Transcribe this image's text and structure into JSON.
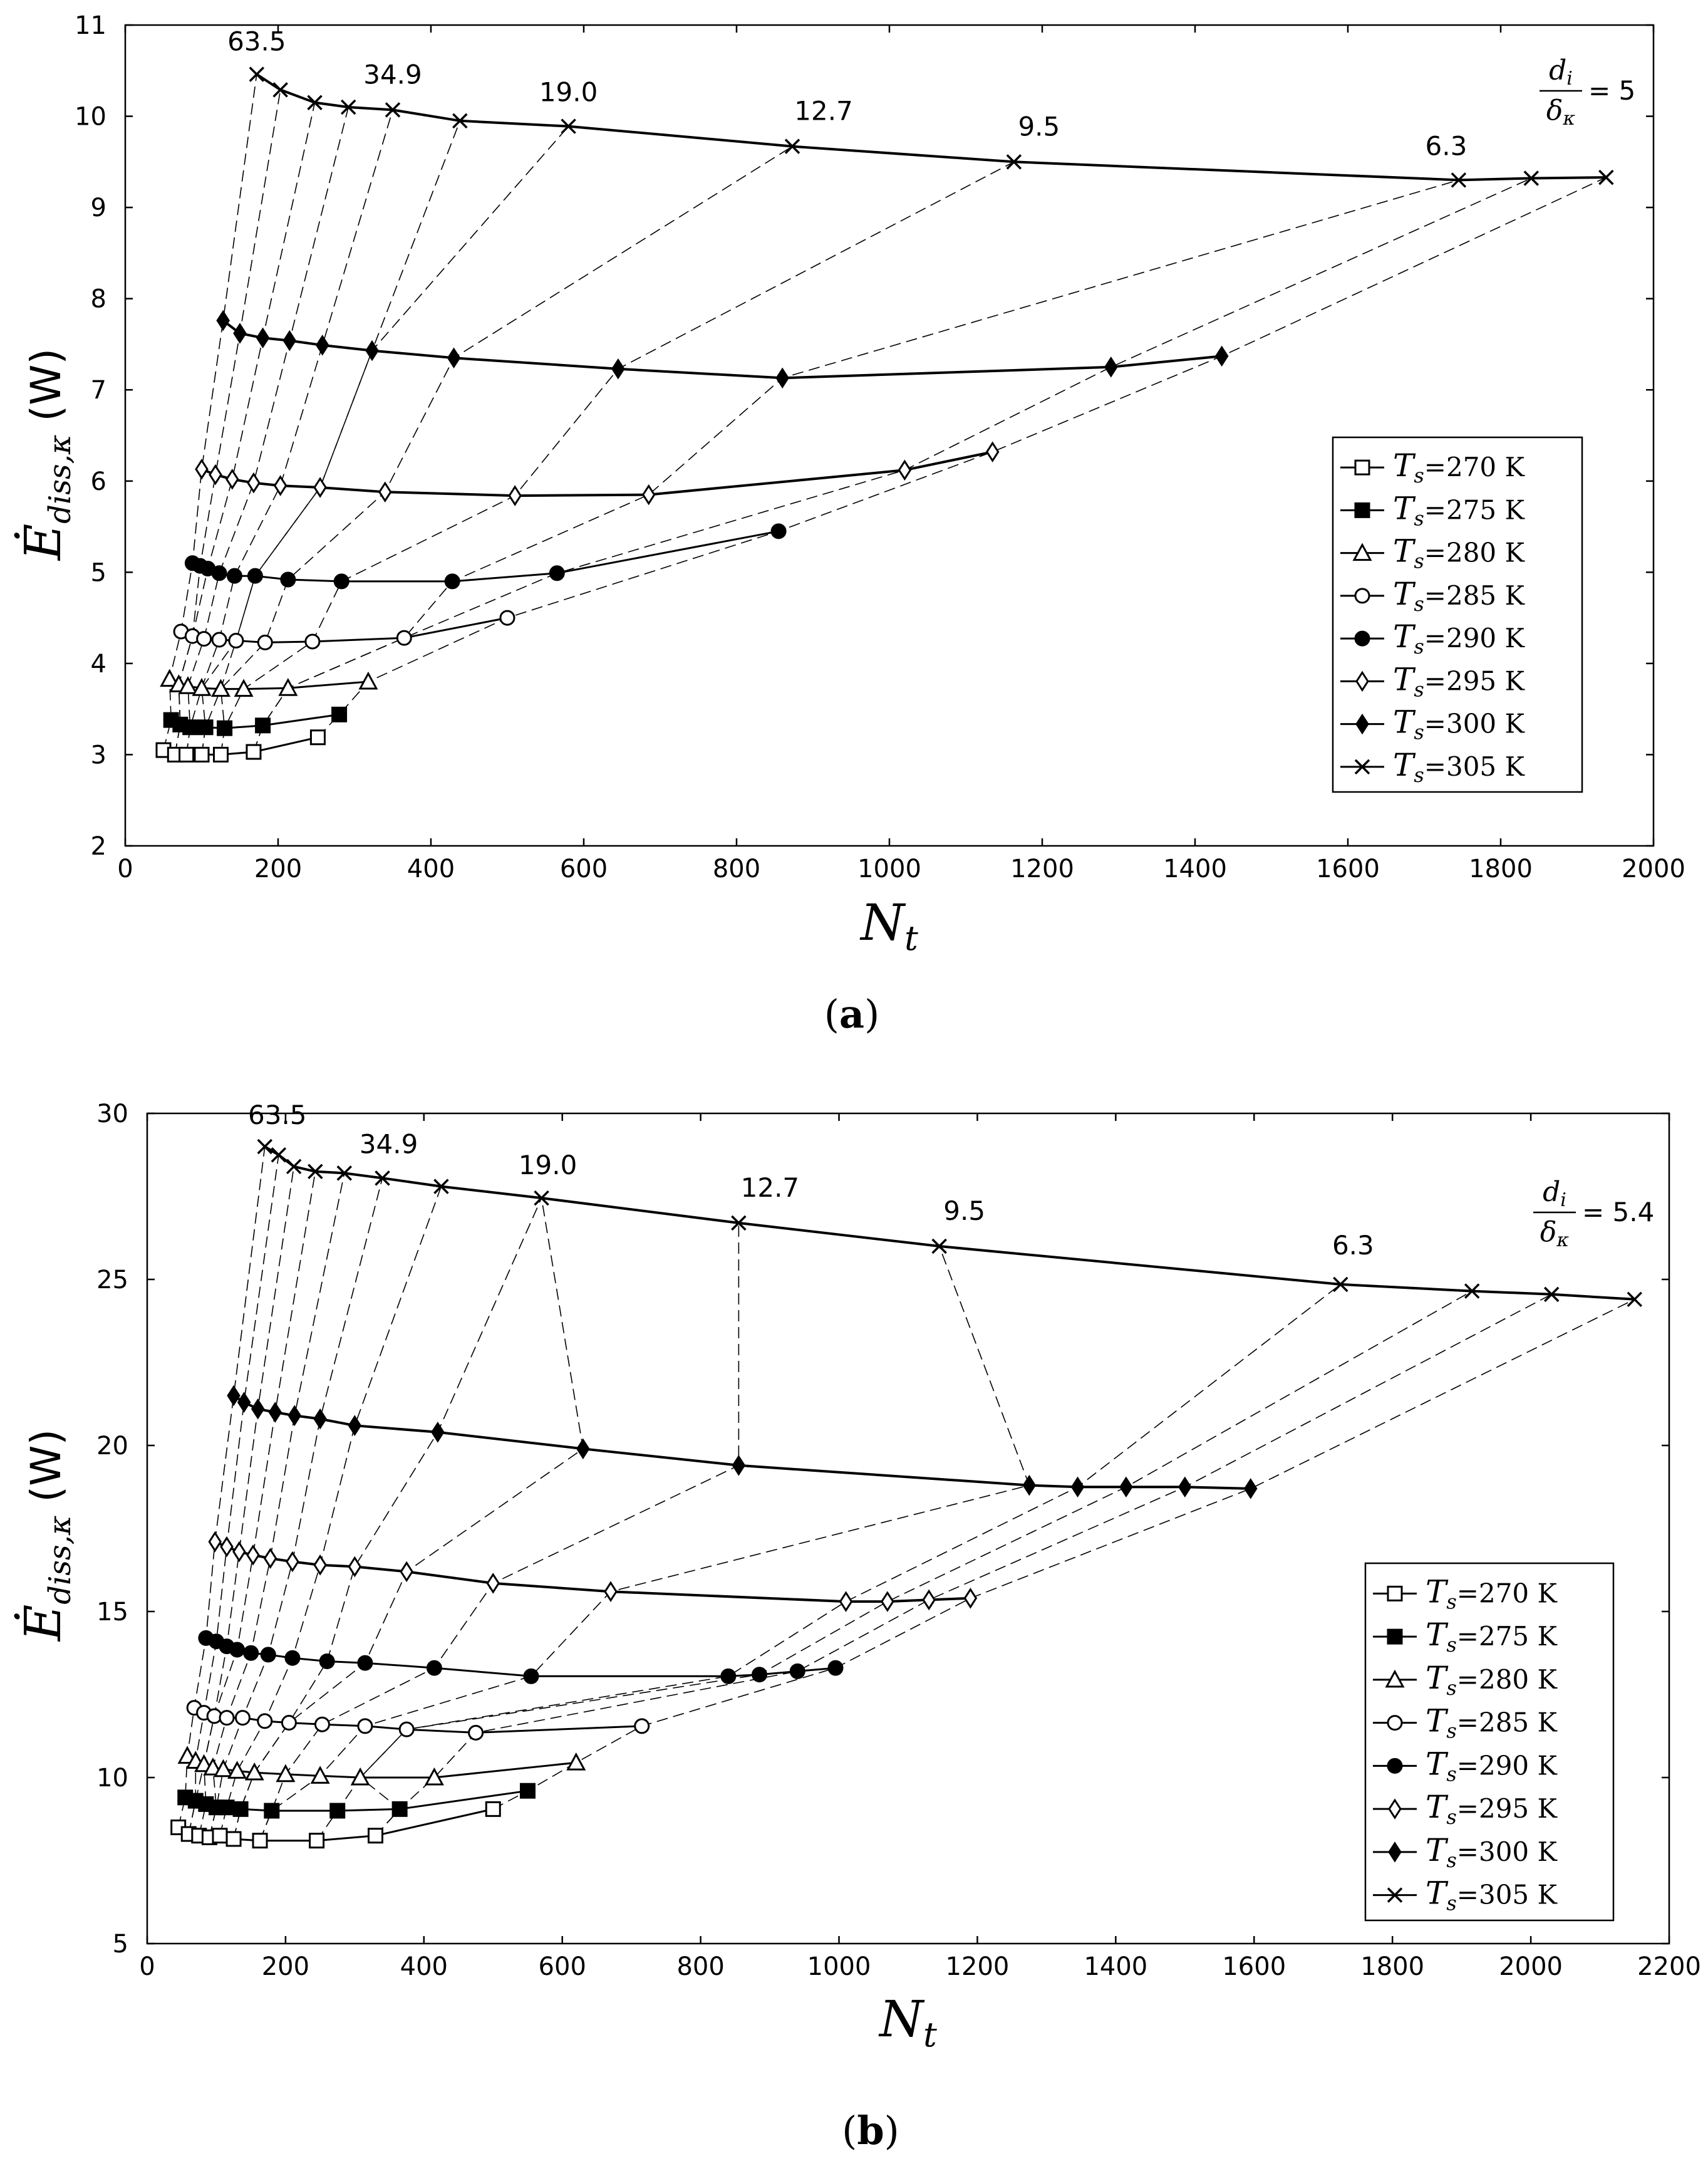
{
  "chart_data": [
    {
      "panel": "(a)",
      "type": "line",
      "caption_letter": "a",
      "xlabel": "N",
      "xlabel_sub": "t",
      "ylabel": "Ė",
      "ylabel_sub": "diss,κ",
      "ylabel_unit": "(W)",
      "xlim": [
        0,
        2000
      ],
      "ylim": [
        2,
        11
      ],
      "xticks": [
        "0",
        "200",
        "400",
        "600",
        "800",
        "1000",
        "1200",
        "1400",
        "1600",
        "1800",
        "2000"
      ],
      "yticks": [
        "2",
        "3",
        "4",
        "5",
        "6",
        "7",
        "8",
        "9",
        "10",
        "11"
      ],
      "ratio_labels": [
        "63.5",
        "34.9",
        "19.0",
        "12.7",
        "9.5",
        "6.3"
      ],
      "last_ratio_num": "d",
      "last_ratio_num_sub": "i",
      "last_ratio_den": "δ",
      "last_ratio_den_sub": "κ",
      "last_ratio_value": "= 5",
      "series": [
        {
          "name": "T_s=270 K",
          "legend_value": "=270",
          "unit": "K",
          "marker": "square-open",
          "x": [
            50,
            65,
            80,
            100,
            125,
            168,
            252
          ],
          "y": [
            3.05,
            3.0,
            3.0,
            3.0,
            3.0,
            3.03,
            3.19
          ]
        },
        {
          "name": "T_s=275 K",
          "legend_value": "=275",
          "unit": "K",
          "marker": "square-filled",
          "x": [
            60,
            72,
            85,
            105,
            130,
            180,
            280
          ],
          "y": [
            3.38,
            3.33,
            3.3,
            3.3,
            3.29,
            3.32,
            3.44
          ]
        },
        {
          "name": "T_s=280 K",
          "legend_value": "=280",
          "unit": "K",
          "marker": "triangle-open",
          "x": [
            58,
            70,
            82,
            100,
            125,
            155,
            213,
            318
          ],
          "y": [
            3.83,
            3.77,
            3.75,
            3.73,
            3.72,
            3.72,
            3.73,
            3.8
          ]
        },
        {
          "name": "T_s=285 K",
          "legend_value": "=285",
          "unit": "K",
          "marker": "circle-open",
          "x": [
            73,
            88,
            103,
            123,
            145,
            183,
            245,
            365,
            500
          ],
          "y": [
            4.35,
            4.3,
            4.27,
            4.26,
            4.25,
            4.23,
            4.24,
            4.28,
            4.5
          ]
        },
        {
          "name": "T_s=290 K",
          "legend_value": "=290",
          "unit": "K",
          "marker": "circle-filled",
          "x": [
            88,
            98,
            108,
            123,
            143,
            170,
            213,
            283,
            428,
            565,
            855
          ],
          "y": [
            5.1,
            5.07,
            5.04,
            4.99,
            4.96,
            4.96,
            4.92,
            4.9,
            4.9,
            4.99,
            5.45
          ]
        },
        {
          "name": "T_s=295 K",
          "legend_value": "=295",
          "unit": "K",
          "marker": "diamond-open",
          "x": [
            100,
            118,
            140,
            168,
            203,
            255,
            340,
            510,
            685,
            1020,
            1135
          ],
          "y": [
            6.13,
            6.07,
            6.02,
            5.98,
            5.95,
            5.93,
            5.88,
            5.84,
            5.85,
            6.12,
            6.32
          ]
        },
        {
          "name": "T_s=300 K",
          "legend_value": "=300",
          "unit": "K",
          "marker": "diamond-filled",
          "x": [
            128,
            150,
            180,
            215,
            258,
            323,
            430,
            645,
            860,
            1290,
            1435
          ],
          "y": [
            7.76,
            7.62,
            7.57,
            7.54,
            7.49,
            7.43,
            7.35,
            7.23,
            7.13,
            7.25,
            7.37
          ]
        },
        {
          "name": "T_s=305 K",
          "legend_value": "=305",
          "unit": "K",
          "marker": "x",
          "x": [
            172,
            203,
            248,
            292,
            350,
            438,
            580,
            873,
            1163,
            1745,
            1840,
            1938
          ],
          "y": [
            10.46,
            10.29,
            10.15,
            10.1,
            10.07,
            9.95,
            9.89,
            9.67,
            9.5,
            9.3,
            9.32,
            9.33
          ]
        }
      ]
    },
    {
      "panel": "(b)",
      "type": "line",
      "caption_letter": "b",
      "xlabel": "N",
      "xlabel_sub": "t",
      "ylabel": "Ė",
      "ylabel_sub": "diss,κ",
      "ylabel_unit": "(W)",
      "xlim": [
        0,
        2200
      ],
      "ylim": [
        5,
        30
      ],
      "xticks": [
        "0",
        "200",
        "400",
        "600",
        "800",
        "1000",
        "1200",
        "1400",
        "1600",
        "1800",
        "2000",
        "2200"
      ],
      "yticks": [
        "5",
        "10",
        "15",
        "20",
        "25",
        "30"
      ],
      "ratio_labels": [
        "63.5",
        "34.9",
        "19.0",
        "12.7",
        "9.5",
        "6.3"
      ],
      "last_ratio_num": "d",
      "last_ratio_num_sub": "i",
      "last_ratio_den": "δ",
      "last_ratio_den_sub": "κ",
      "last_ratio_value": "= 5.4",
      "series": [
        {
          "name": "T_s=270 K",
          "legend_value": "=270",
          "unit": "K",
          "marker": "square-open",
          "x": [
            45,
            60,
            75,
            90,
            105,
            125,
            163,
            245,
            330,
            500
          ],
          "y": [
            8.5,
            8.3,
            8.25,
            8.2,
            8.25,
            8.15,
            8.1,
            8.1,
            8.25,
            9.05
          ]
        },
        {
          "name": "T_s=275 K",
          "legend_value": "=275",
          "unit": "K",
          "marker": "square-filled",
          "x": [
            55,
            70,
            85,
            100,
            115,
            135,
            180,
            275,
            365,
            550
          ],
          "y": [
            9.4,
            9.3,
            9.2,
            9.1,
            9.1,
            9.05,
            9.0,
            9.0,
            9.05,
            9.6
          ]
        },
        {
          "name": "T_s=280 K",
          "legend_value": "=280",
          "unit": "K",
          "marker": "triangle-open",
          "x": [
            58,
            70,
            82,
            95,
            110,
            130,
            155,
            200,
            250,
            308,
            415,
            620
          ],
          "y": [
            10.65,
            10.5,
            10.4,
            10.3,
            10.25,
            10.2,
            10.15,
            10.1,
            10.05,
            10.0,
            10.0,
            10.45
          ]
        },
        {
          "name": "T_s=285 K",
          "legend_value": "=285",
          "unit": "K",
          "marker": "circle-open",
          "x": [
            68,
            82,
            97,
            115,
            138,
            170,
            205,
            253,
            315,
            375,
            475,
            715
          ],
          "y": [
            12.1,
            11.95,
            11.85,
            11.8,
            11.8,
            11.7,
            11.65,
            11.6,
            11.55,
            11.45,
            11.35,
            11.55
          ]
        },
        {
          "name": "T_s=290 K",
          "legend_value": "=290",
          "unit": "K",
          "marker": "circle-filled",
          "x": [
            85,
            100,
            115,
            130,
            150,
            175,
            210,
            260,
            315,
            415,
            555,
            840,
            885,
            940,
            995
          ],
          "y": [
            14.2,
            14.1,
            13.95,
            13.85,
            13.75,
            13.7,
            13.6,
            13.5,
            13.45,
            13.3,
            13.05,
            13.05,
            13.1,
            13.2,
            13.3
          ]
        },
        {
          "name": "T_s=295 K",
          "legend_value": "=295",
          "unit": "K",
          "marker": "diamond-open",
          "x": [
            98,
            115,
            133,
            153,
            178,
            210,
            250,
            300,
            375,
            500,
            670,
            1010,
            1070,
            1130,
            1190
          ],
          "y": [
            17.1,
            16.95,
            16.8,
            16.7,
            16.6,
            16.5,
            16.4,
            16.35,
            16.2,
            15.85,
            15.6,
            15.3,
            15.3,
            15.35,
            15.4
          ]
        },
        {
          "name": "T_s=300 K",
          "legend_value": "=300",
          "unit": "K",
          "marker": "diamond-filled",
          "x": [
            125,
            140,
            160,
            185,
            213,
            250,
            300,
            420,
            630,
            855,
            1275,
            1345,
            1415,
            1500,
            1595
          ],
          "y": [
            21.5,
            21.3,
            21.1,
            21.0,
            20.9,
            20.8,
            20.6,
            20.4,
            19.9,
            19.4,
            18.8,
            18.75,
            18.75,
            18.75,
            18.7
          ]
        },
        {
          "name": "T_s=305 K",
          "legend_value": "=305",
          "unit": "K",
          "marker": "x",
          "x": [
            170,
            190,
            212,
            243,
            285,
            340,
            425,
            570,
            855,
            1145,
            1725,
            1915,
            2030,
            2150
          ],
          "y": [
            29.0,
            28.75,
            28.4,
            28.25,
            28.2,
            28.05,
            27.8,
            27.45,
            26.7,
            26.0,
            24.85,
            24.65,
            24.55,
            24.4
          ]
        }
      ]
    }
  ]
}
